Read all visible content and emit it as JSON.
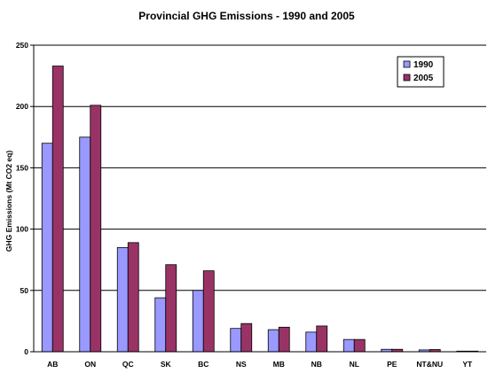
{
  "chart_data": {
    "type": "bar",
    "title": "Provincial GHG Emissions - 1990 and 2005",
    "xlabel": "",
    "ylabel": "GHG Emissions (Mt CO2 eq)",
    "ylim": [
      0,
      250
    ],
    "yticks": [
      0,
      50,
      100,
      150,
      200,
      250
    ],
    "grid": true,
    "legend_position": "top-right",
    "categories": [
      "AB",
      "ON",
      "QC",
      "SK",
      "BC",
      "NS",
      "MB",
      "NB",
      "NL",
      "PE",
      "NT&NU",
      "YT"
    ],
    "series": [
      {
        "name": "1990",
        "color": "#9999ff",
        "values": [
          170,
          175,
          85,
          44,
          50,
          19,
          18,
          16,
          10,
          2,
          1.5,
          0.5
        ]
      },
      {
        "name": "2005",
        "color": "#993366",
        "values": [
          233,
          201,
          89,
          71,
          66,
          23,
          20,
          21,
          10,
          2,
          1.8,
          0.5
        ]
      }
    ]
  }
}
